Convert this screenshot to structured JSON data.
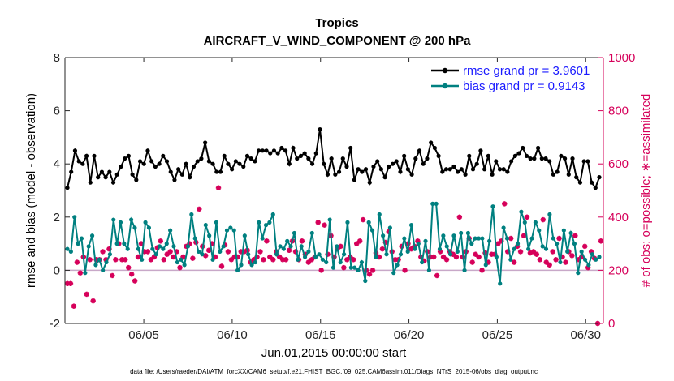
{
  "chart_data": {
    "type": "line",
    "title": "Tropics",
    "subtitle": "AIRCRAFT_V_WIND_COMPONENT @ 200 hPa",
    "xlabel": "Jun.01,2015 00:00:00 start",
    "ylabel": "rmse and bias (model - observation)",
    "y2label": "# of obs: o=possible; ∗=assimilated",
    "footer": "data file: /Users/raeder/DAI/ATM_forcXX/CAM6_setup/f.e21.FHIST_BGC.f09_025.CAM6assim.011/Diags_NTrS_2015-06/obs_diag_output.nc",
    "xlim": [
      0.54,
      31.0
    ],
    "ylim": [
      -2,
      8
    ],
    "y2lim": [
      0,
      1000
    ],
    "x_ticks": [
      5,
      10,
      15,
      20,
      25,
      30
    ],
    "x_tick_labels": [
      "06/05",
      "06/10",
      "06/15",
      "06/20",
      "06/25",
      "06/30"
    ],
    "y_ticks": [
      -2,
      0,
      2,
      4,
      6,
      8
    ],
    "y_tick_labels": [
      "-2",
      "0",
      "2",
      "4",
      "6",
      "8"
    ],
    "y2_ticks": [
      0,
      200,
      400,
      600,
      800,
      1000
    ],
    "y2_tick_labels": [
      "0",
      "200",
      "400",
      "600",
      "800",
      "1000"
    ],
    "grid": false,
    "legend_position": "top-right",
    "colors": {
      "rmse": "#000000",
      "bias": "#008080",
      "obs": "#d6005a",
      "zero_line": "#c8a8c8",
      "legend_text": "#1a1aff",
      "right_axis": "#d6005a"
    },
    "series": [
      {
        "name": "rmse grand pr = 3.9601",
        "axis": "left",
        "x_start": 0.75,
        "x_step": 0.25,
        "values": [
          3.1,
          3.7,
          4.5,
          4.1,
          4.0,
          4.3,
          3.3,
          4.3,
          3.5,
          3.7,
          3.5,
          3.7,
          3.3,
          3.6,
          3.9,
          4.2,
          4.3,
          3.6,
          3.4,
          4.1,
          4.0,
          4.5,
          4.1,
          3.9,
          4.0,
          4.3,
          4.1,
          3.7,
          3.4,
          3.8,
          3.6,
          4.0,
          3.5,
          3.9,
          4.1,
          4.2,
          4.8,
          4.1,
          4.0,
          3.7,
          3.7,
          4.3,
          4.0,
          3.8,
          4.1,
          4.0,
          3.9,
          4.3,
          4.2,
          4.1,
          4.5,
          4.5,
          4.5,
          4.4,
          4.5,
          4.4,
          4.6,
          4.5,
          4.0,
          4.6,
          4.2,
          4.3,
          4.4,
          4.2,
          4.0,
          4.4,
          5.3,
          4.0,
          3.6,
          4.2,
          3.6,
          3.7,
          4.2,
          3.9,
          4.6,
          3.4,
          3.8,
          3.7,
          3.8,
          3.3,
          3.9,
          4.1,
          3.8,
          3.5,
          3.9,
          4.0,
          4.1,
          3.7,
          4.3,
          3.8,
          3.6,
          4.2,
          4.5,
          4.0,
          4.2,
          4.8,
          4.6,
          4.3,
          3.7,
          3.8,
          3.8,
          3.9,
          3.7,
          3.8,
          3.6,
          4.3,
          3.8,
          4.0,
          4.5,
          3.8,
          4.3,
          3.6,
          4.1,
          3.8,
          3.8,
          3.7,
          4.1,
          4.3,
          4.4,
          4.6,
          4.3,
          4.2,
          4.2,
          4.6,
          4.2,
          4.2,
          4.1,
          3.6,
          3.7,
          4.3,
          4.2,
          3.6,
          4.2,
          3.5,
          3.3,
          4.1,
          4.1,
          3.3,
          3.1,
          3.5
        ]
      },
      {
        "name": "bias grand pr = 0.9143",
        "axis": "left",
        "x_start": 0.75,
        "x_step": 0.25,
        "values": [
          0.8,
          0.7,
          2.0,
          1.0,
          1.2,
          -0.1,
          0.9,
          1.3,
          0.2,
          0.4,
          0.0,
          0.3,
          0.6,
          1.9,
          1.0,
          1.8,
          1.0,
          0.8,
          1.9,
          1.6,
          0.8,
          0.4,
          1.8,
          1.6,
          0.8,
          0.6,
          0.9,
          0.8,
          1.0,
          1.5,
          0.9,
          0.3,
          0.4,
          0.2,
          0.9,
          2.1,
          1.2,
          0.7,
          0.6,
          1.7,
          1.3,
          0.4,
          1.8,
          0.7,
          0.9,
          1.5,
          1.6,
          1.5,
          0.0,
          0.2,
          1.3,
          0.6,
          0.2,
          0.3,
          1.8,
          1.2,
          1.7,
          1.8,
          2.1,
          0.6,
          0.9,
          0.8,
          1.1,
          0.9,
          1.4,
          0.4,
          0.9,
          0.5,
          0.7,
          1.4,
          0.5,
          0.6,
          0.4,
          0.3,
          1.9,
          0.1,
          0.9,
          0.3,
          0.6,
          1.8,
          0.1,
          0.1,
          0.0,
          0.3,
          -0.4,
          1.8,
          1.5,
          0.5,
          2.1,
          1.3,
          0.6,
          1.6,
          -0.1,
          0.2,
          0.6,
          1.2,
          0.7,
          1.7,
          0.8,
          1.0,
          0.3,
          1.1,
          0.0,
          2.5,
          2.5,
          0.8,
          1.3,
          0.9,
          0.6,
          1.3,
          0.7,
          1.4,
          0.0,
          1.4,
          1.0,
          1.2,
          1.2,
          1.2,
          0.2,
          1.1,
          2.4,
          0.5,
          -0.5,
          1.6,
          1.2,
          0.4,
          0.8,
          1.0,
          2.2,
          1.8,
          0.8,
          1.2,
          1.8,
          1.5,
          0.9,
          0.8,
          2.1,
          1.2,
          1.0,
          0.3,
          1.5,
          0.7,
          1.4,
          1.0,
          -0.1,
          0.7,
          0.4,
          0.2,
          0.6,
          0.4,
          0.5
        ]
      },
      {
        "name": "obs possible/assimilated",
        "axis": "right",
        "marker": "asterisk",
        "x_start": 0.75,
        "x_step": 0.25,
        "values": [
          150,
          150,
          65,
          230,
          190,
          250,
          110,
          240,
          85,
          240,
          240,
          270,
          240,
          280,
          180,
          240,
          300,
          240,
          240,
          210,
          185,
          160,
          250,
          300,
          270,
          270,
          240,
          250,
          285,
          310,
          240,
          260,
          270,
          250,
          270,
          210,
          250,
          290,
          300,
          245,
          305,
          430,
          290,
          255,
          275,
          300,
          250,
          510,
          215,
          295,
          270,
          240,
          250,
          250,
          270,
          270,
          275,
          230,
          240,
          250,
          270,
          240,
          310,
          250,
          240,
          270,
          250,
          240,
          240,
          275,
          310,
          270,
          240,
          310,
          260,
          230,
          240,
          250,
          380,
          200,
          370,
          260,
          330,
          250,
          280,
          290,
          210,
          240,
          250,
          240,
          300,
          310,
          390,
          200,
          185,
          200,
          265,
          250,
          280,
          305,
          345,
          270,
          240,
          240,
          290,
          200,
          300,
          280,
          290,
          310,
          250,
          235,
          270,
          250,
          250,
          180,
          270,
          250,
          240,
          270,
          260,
          250,
          400,
          250,
          270,
          320,
          230,
          260,
          250,
          200,
          265,
          230,
          260,
          260,
          300,
          310,
          450,
          270,
          320,
          230,
          290,
          270,
          330,
          400,
          265,
          270,
          260,
          240,
          390,
          230,
          220,
          270,
          240,
          320,
          250,
          230,
          270,
          255,
          330,
          240,
          250,
          290,
          210,
          270,
          245,
          0,
          310
        ]
      }
    ],
    "legend": [
      {
        "label": "rmse grand pr = 3.9601",
        "color": "#000000"
      },
      {
        "label": "bias grand pr = 0.9143",
        "color": "#008080"
      }
    ]
  }
}
